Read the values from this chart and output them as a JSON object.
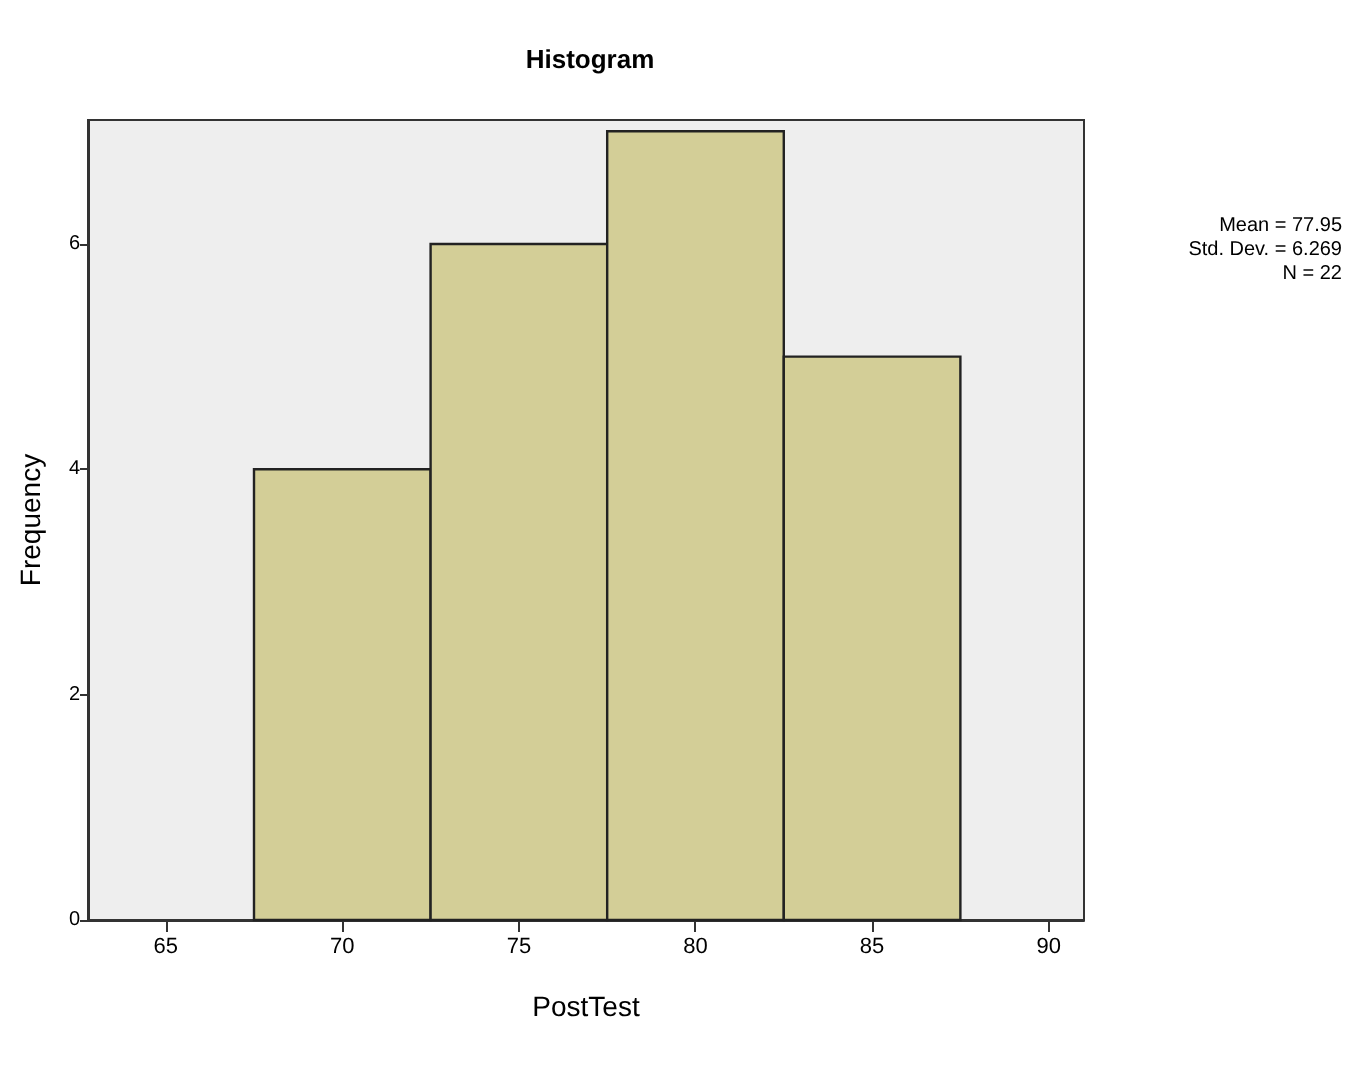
{
  "chart_data": {
    "type": "histogram",
    "title": "Histogram",
    "xlabel": "PostTest",
    "ylabel": "Frequency",
    "bins": [
      67.5,
      72.5,
      77.5,
      82.5,
      87.5
    ],
    "values": [
      4,
      6,
      7,
      5
    ],
    "color": "#d3ce97",
    "xlim": [
      62.8,
      91
    ],
    "xticks": [
      65,
      70,
      75,
      80,
      85,
      90
    ],
    "ylim": [
      0,
      7.1
    ],
    "yticks": [
      0,
      2,
      4,
      6
    ],
    "grid": false,
    "annotations": [
      "Mean = 77.95",
      "Std. Dev. = 6.269",
      "N = 22"
    ]
  }
}
